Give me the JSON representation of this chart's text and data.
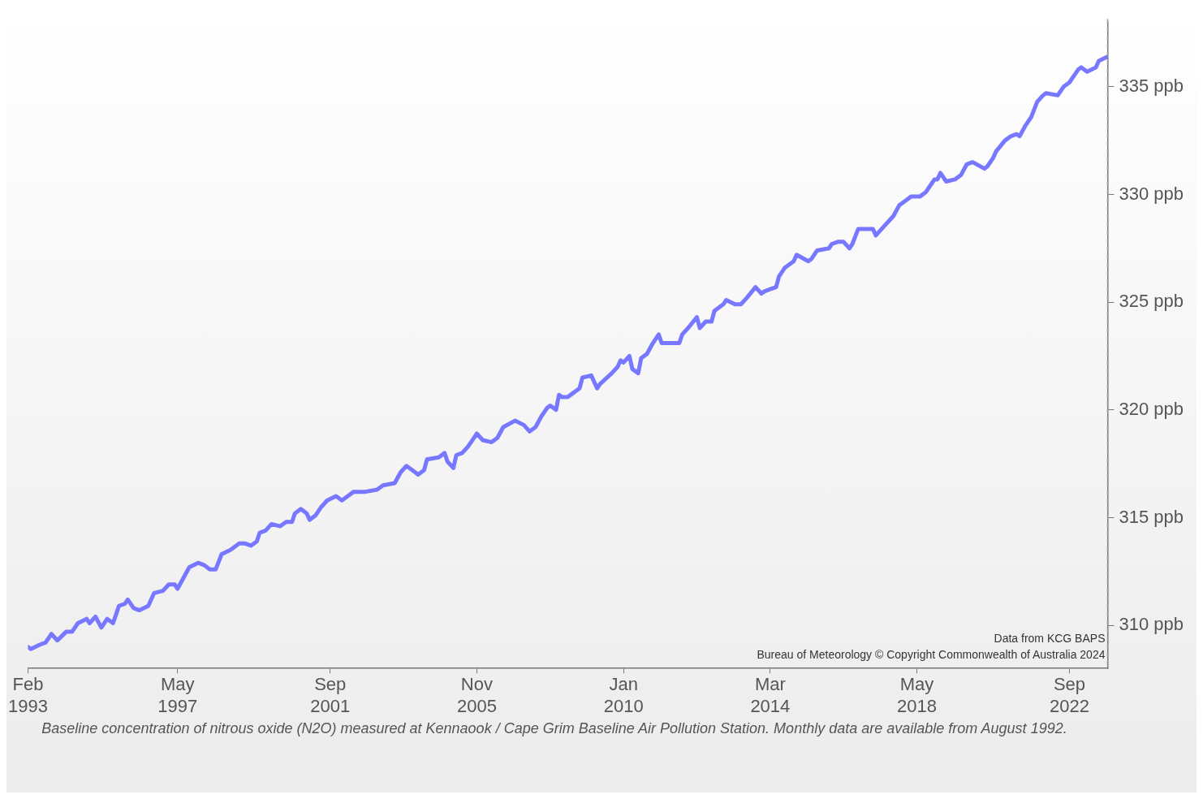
{
  "chart_data": {
    "type": "line",
    "x": [
      "1993-02",
      "1993-03",
      "1993-06",
      "1993-08",
      "1993-10",
      "1993-12",
      "1994-03",
      "1994-05",
      "1994-07",
      "1994-10",
      "1994-11",
      "1995-01",
      "1995-03",
      "1995-05",
      "1995-07",
      "1995-09",
      "1995-11",
      "1995-12",
      "1996-02",
      "1996-04",
      "1996-07",
      "1996-09",
      "1996-12",
      "1997-02",
      "1997-04",
      "1997-05",
      "1997-07",
      "1997-09",
      "1997-12",
      "1998-02",
      "1998-04",
      "1998-06",
      "1998-08",
      "1998-11",
      "1999-02",
      "1999-04",
      "1999-06",
      "1999-08",
      "1999-09",
      "1999-11",
      "2000-01",
      "2000-04",
      "2000-06",
      "2000-08",
      "2000-09",
      "2000-11",
      "2001-01",
      "2001-02",
      "2001-04",
      "2001-06",
      "2001-08",
      "2001-11",
      "2002-01",
      "2002-03",
      "2002-05",
      "2002-09",
      "2003-01",
      "2003-03",
      "2003-07",
      "2003-09",
      "2003-11",
      "2004-01",
      "2004-03",
      "2004-05",
      "2004-06",
      "2004-10",
      "2004-12",
      "2005-01",
      "2005-03",
      "2005-04",
      "2005-06",
      "2005-08",
      "2005-10",
      "2005-11",
      "2006-01",
      "2006-04",
      "2006-06",
      "2006-08",
      "2006-12",
      "2007-03",
      "2007-05",
      "2007-07",
      "2007-09",
      "2007-11",
      "2007-12",
      "2008-02",
      "2008-03",
      "2008-04",
      "2008-06",
      "2008-10",
      "2008-11",
      "2009-02",
      "2009-04",
      "2009-05",
      "2009-09",
      "2009-11",
      "2009-12",
      "2010-01",
      "2010-03",
      "2010-04",
      "2010-06",
      "2010-07",
      "2010-09",
      "2010-11",
      "2011-01",
      "2011-02",
      "2011-06",
      "2011-08",
      "2011-09",
      "2011-11",
      "2012-02",
      "2012-03",
      "2012-05",
      "2012-07",
      "2012-08",
      "2012-11",
      "2012-12",
      "2013-03",
      "2013-05",
      "2013-07",
      "2013-10",
      "2013-12",
      "2014-01",
      "2014-03",
      "2014-05",
      "2014-06",
      "2014-08",
      "2014-11",
      "2014-12",
      "2015-04",
      "2015-05",
      "2015-07",
      "2015-11",
      "2015-12",
      "2016-02",
      "2016-04",
      "2016-06",
      "2016-07",
      "2016-09",
      "2017-02",
      "2017-03",
      "2017-05",
      "2017-09",
      "2017-11",
      "2018-01",
      "2018-03",
      "2018-06",
      "2018-08",
      "2018-09",
      "2018-11",
      "2018-12",
      "2019-01",
      "2019-03",
      "2019-06",
      "2019-08",
      "2019-10",
      "2019-12",
      "2020-04",
      "2020-05",
      "2020-07",
      "2020-08",
      "2020-11",
      "2021-01",
      "2021-03",
      "2021-04",
      "2021-06",
      "2021-08",
      "2021-10",
      "2021-12",
      "2022-01",
      "2022-05",
      "2022-07",
      "2022-09",
      "2022-10",
      "2022-12",
      "2023-01",
      "2023-03",
      "2023-06",
      "2023-07",
      "2023-10"
    ],
    "series": [
      {
        "color": "#7777ff",
        "values": [
          309.0,
          308.9,
          309.1,
          309.2,
          309.6,
          309.3,
          309.7,
          309.7,
          310.1,
          310.3,
          310.1,
          310.4,
          309.9,
          310.3,
          310.1,
          310.9,
          311.0,
          311.2,
          310.8,
          310.7,
          310.9,
          311.5,
          311.6,
          311.9,
          311.9,
          311.7,
          312.2,
          312.7,
          312.9,
          312.8,
          312.6,
          312.6,
          313.3,
          313.5,
          313.8,
          313.8,
          313.7,
          313.9,
          314.3,
          314.4,
          314.7,
          314.6,
          314.8,
          314.8,
          315.2,
          315.4,
          315.2,
          314.9,
          315.1,
          315.5,
          315.8,
          316.0,
          315.8,
          316.0,
          316.2,
          316.2,
          316.3,
          316.5,
          316.6,
          317.1,
          317.4,
          317.2,
          317.0,
          317.2,
          317.7,
          317.8,
          318.0,
          317.6,
          317.3,
          317.9,
          318.0,
          318.3,
          318.7,
          318.9,
          318.6,
          318.5,
          318.7,
          319.2,
          319.5,
          319.3,
          319.0,
          319.2,
          319.7,
          320.1,
          320.2,
          320.0,
          320.7,
          320.6,
          320.6,
          321.0,
          321.5,
          321.6,
          321.0,
          321.2,
          321.7,
          322.0,
          322.3,
          322.2,
          322.5,
          321.9,
          321.7,
          322.4,
          322.6,
          323.1,
          323.5,
          323.1,
          323.1,
          323.1,
          323.5,
          323.8,
          324.3,
          323.8,
          324.1,
          324.1,
          324.6,
          324.9,
          325.1,
          324.9,
          324.9,
          325.2,
          325.7,
          325.4,
          325.5,
          325.6,
          325.7,
          326.2,
          326.6,
          326.9,
          327.2,
          326.9,
          327.0,
          327.4,
          327.5,
          327.7,
          327.8,
          327.8,
          327.5,
          327.7,
          328.4,
          328.4,
          328.1,
          328.4,
          329.0,
          329.5,
          329.7,
          329.9,
          329.9,
          330.1,
          330.3,
          330.7,
          330.7,
          331.0,
          330.6,
          330.7,
          330.9,
          331.4,
          331.5,
          331.2,
          331.3,
          331.7,
          332.0,
          332.5,
          332.7,
          332.8,
          332.7,
          333.2,
          333.6,
          334.3,
          334.6,
          334.7,
          334.6,
          335.0,
          335.2,
          335.4,
          335.8,
          335.9,
          335.7,
          335.9,
          336.2,
          336.4
        ]
      }
    ],
    "xlim": [
      "1993-02",
      "2023-10"
    ],
    "xticks": [
      {
        "value": "1993-02",
        "label": "Feb 1993"
      },
      {
        "value": "1997-05",
        "label": "May 1997"
      },
      {
        "value": "2001-09",
        "label": "Sep 2001"
      },
      {
        "value": "2005-11",
        "label": "Nov 2005"
      },
      {
        "value": "2010-01",
        "label": "Jan 2010"
      },
      {
        "value": "2014-03",
        "label": "Mar 2014"
      },
      {
        "value": "2018-05",
        "label": "May 2018"
      },
      {
        "value": "2022-09",
        "label": "Sep 2022"
      }
    ],
    "ylim": [
      308,
      338
    ],
    "yticks": [
      {
        "value": 310,
        "label": "310 ppb"
      },
      {
        "value": 315,
        "label": "315 ppb"
      },
      {
        "value": 320,
        "label": "320 ppb"
      },
      {
        "value": 325,
        "label": "325 ppb"
      },
      {
        "value": 330,
        "label": "330 ppb"
      },
      {
        "value": 335,
        "label": "335 ppb"
      }
    ],
    "ref_lines": [
      {
        "axis": "x",
        "value": "2023-10",
        "color": "#999999",
        "line_style": "dashed"
      }
    ],
    "annotations": [
      "Data from KCG BAPS",
      "Bureau of Meteorology © Copyright Commonwealth of Australia 2024",
      "Baseline concentration of nitrous oxide (N2O) measured at Kennaook / Cape Grim Baseline Air Pollution Station. Monthly data are available from August 1992."
    ],
    "grid": false,
    "legend": false,
    "marker": "none",
    "line_style": "solid"
  }
}
